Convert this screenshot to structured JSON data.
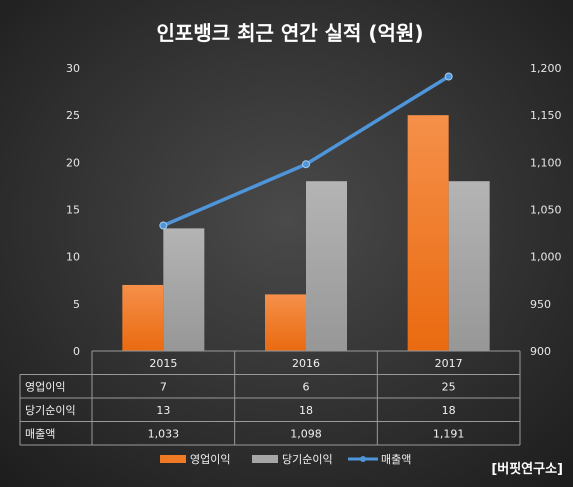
{
  "chart_data": {
    "type": "bar",
    "title": "인포뱅크 최근 연간 실적 (억원)",
    "categories": [
      "2015",
      "2016",
      "2017"
    ],
    "series": [
      {
        "name": "영업이익",
        "type": "bar",
        "axis": "left",
        "values": [
          7,
          6,
          25
        ],
        "labels": [
          "7",
          "6",
          "25"
        ],
        "color": "#f07a23"
      },
      {
        "name": "당기순이익",
        "type": "bar",
        "axis": "left",
        "values": [
          13,
          18,
          18
        ],
        "labels": [
          "13",
          "18",
          "18"
        ],
        "color": "#a6a6a6"
      },
      {
        "name": "매출액",
        "type": "line",
        "axis": "right",
        "values": [
          1033,
          1098,
          1191
        ],
        "labels": [
          "1,033",
          "1,098",
          "1,191"
        ],
        "color": "#4e95d9"
      }
    ],
    "y_left": {
      "min": 0,
      "max": 30,
      "ticks": [
        "0",
        "5",
        "10",
        "15",
        "20",
        "25",
        "30"
      ]
    },
    "y_right": {
      "min": 900,
      "max": 1200,
      "ticks": [
        "900",
        "950",
        "1,000",
        "1,050",
        "1,100",
        "1,150",
        "1,200"
      ]
    },
    "grid": false,
    "legend_position": "bottom",
    "data_table": true
  },
  "source": "[버핏연구소]"
}
